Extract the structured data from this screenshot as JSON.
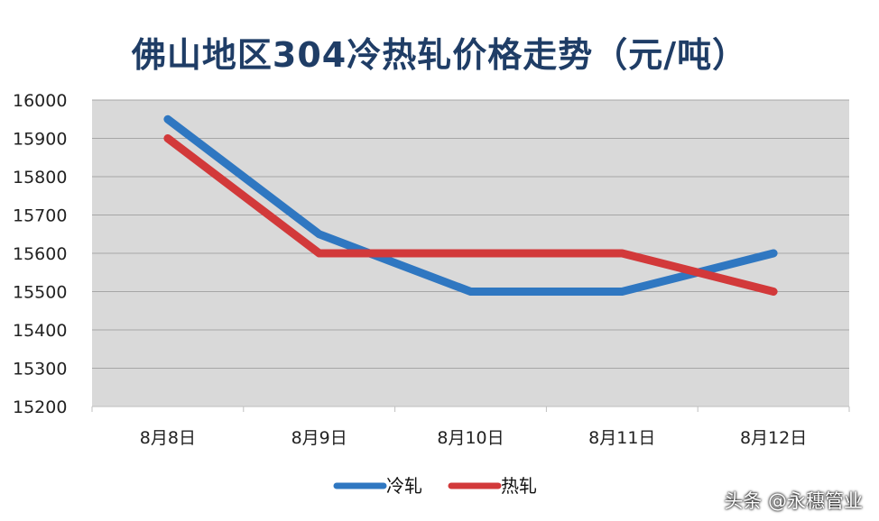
{
  "chart_data": {
    "type": "line",
    "title": "佛山地区304冷热轧价格走势（元/吨）",
    "categories": [
      "8月8日",
      "8月9日",
      "8月10日",
      "8月11日",
      "8月12日"
    ],
    "series": [
      {
        "name": "冷轧",
        "values": [
          15950,
          15650,
          15500,
          15500,
          15600
        ],
        "color": "#2f77c1"
      },
      {
        "name": "热轧",
        "values": [
          15900,
          15600,
          15600,
          15600,
          15500
        ],
        "color": "#d2393a"
      }
    ],
    "ylim": [
      15200,
      16000
    ],
    "yticks": [
      15200,
      15300,
      15400,
      15500,
      15600,
      15700,
      15800,
      15900,
      16000
    ],
    "grid": true,
    "plot_background": "#d9d9d9",
    "legend_position": "bottom"
  },
  "watermark": "头条 @永穗管业"
}
